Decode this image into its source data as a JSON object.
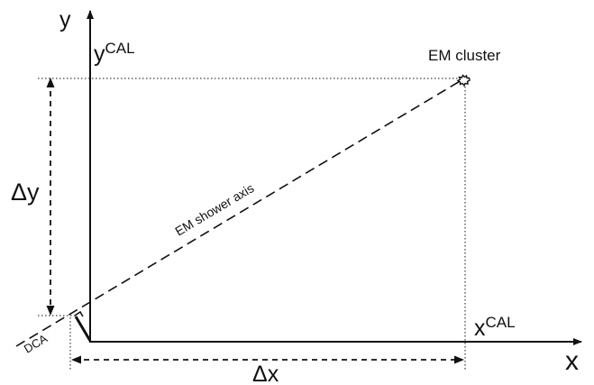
{
  "labels": {
    "axis_y": "y",
    "axis_x": "x",
    "y_cal": "y",
    "y_cal_sup": "CAL",
    "x_cal": "x",
    "x_cal_sup": "CAL",
    "em_cluster": "EM cluster",
    "em_shower_axis": "EM shower axis",
    "delta_y": "Δy",
    "delta_x": "Δx",
    "dca": "DCA"
  },
  "colors": {
    "ink": "#111111",
    "cluster": "#111111"
  }
}
